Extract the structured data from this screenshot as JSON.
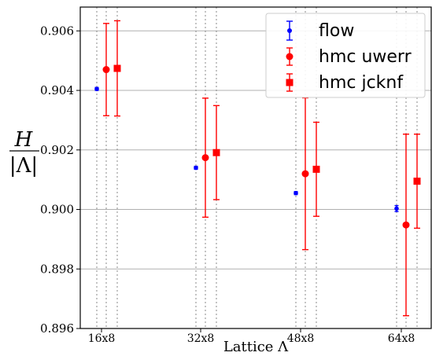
{
  "chart_data": {
    "type": "scatter",
    "title": "",
    "xlabel": "Lattice Λ",
    "ylabel_top": "H",
    "ylabel_bottom": "|Λ|",
    "categories": [
      "16x8",
      "32x8",
      "48x8",
      "64x8"
    ],
    "ylim": [
      0.896,
      0.9068
    ],
    "yticks": [
      "0.896",
      "0.898",
      "0.900",
      "0.902",
      "0.904",
      "0.906"
    ],
    "grid": true,
    "legend_position": "top-right",
    "series": [
      {
        "name": "flow",
        "marker": "circle",
        "color": "#0000ff",
        "values": [
          0.90405,
          0.9014,
          0.90055,
          0.90003
        ],
        "errors": [
          5e-05,
          5e-05,
          5e-05,
          0.0001
        ]
      },
      {
        "name": "hmc uwerr",
        "marker": "circle",
        "color": "#ff0000",
        "values": [
          0.9047,
          0.90174,
          0.9012,
          0.89948
        ],
        "errors": [
          0.00155,
          0.002,
          0.00255,
          0.00305
        ]
      },
      {
        "name": "hmc jcknf",
        "marker": "square",
        "color": "#ff0000",
        "values": [
          0.90474,
          0.90191,
          0.90135,
          0.90095
        ],
        "errors": [
          0.0016,
          0.00158,
          0.00158,
          0.00158
        ]
      }
    ]
  }
}
